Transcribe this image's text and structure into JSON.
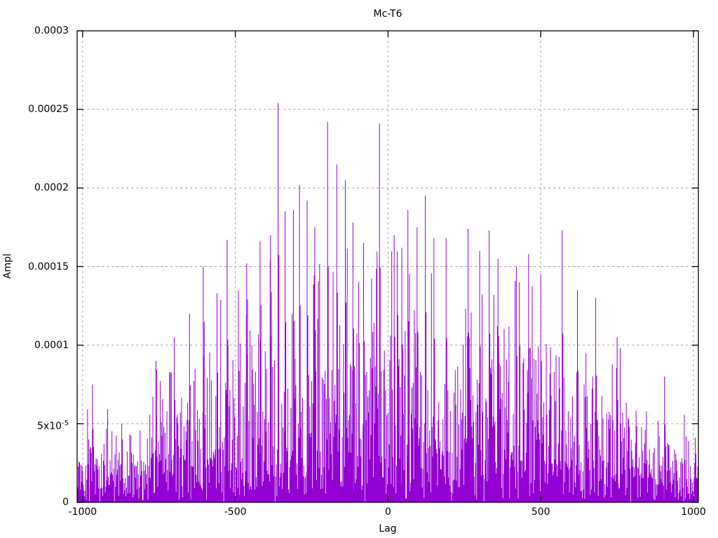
{
  "window": {
    "background_color": "#ffffff",
    "text_color": "#000000"
  },
  "chart_data": {
    "type": "line",
    "style": "impulses",
    "title": "Mc-T6",
    "xlabel": "Lag",
    "ylabel": "Ampl",
    "xlim": [
      -1018,
      1016
    ],
    "ylim": [
      0,
      0.0003
    ],
    "grid": true,
    "legend": "none",
    "line_color": "#9400d3",
    "grid_color": "#a6a6a6",
    "frame_color": "#000000",
    "x_ticks": [
      {
        "value": -1000,
        "label": "-1000"
      },
      {
        "value": -500,
        "label": "-500"
      },
      {
        "value": 0,
        "label": "0"
      },
      {
        "value": 500,
        "label": "500"
      },
      {
        "value": 1000,
        "label": "1000"
      }
    ],
    "y_ticks": [
      {
        "value": 0,
        "label": "0"
      },
      {
        "value": 5e-05,
        "label": "5x10^-5"
      },
      {
        "value": 0.0001,
        "label": "0.0001"
      },
      {
        "value": 0.00015,
        "label": "0.00015"
      },
      {
        "value": 0.0002,
        "label": "0.0002"
      },
      {
        "value": 0.00025,
        "label": "0.00025"
      },
      {
        "value": 0.0003,
        "label": "0.0003"
      }
    ],
    "noise_model": {
      "description": "dense half-normal amplitude noise vs lag; sigma = envelope/2.2, |z| clipped at 2.6",
      "seed": 1337,
      "lag_step": 2,
      "sigma_divisor": 2.2,
      "clip_z": 2.6,
      "envelope": [
        [
          -1020,
          5.2e-05
        ],
        [
          -960,
          5.6e-05
        ],
        [
          -900,
          5.6e-05
        ],
        [
          -800,
          6.5e-05
        ],
        [
          -700,
          8e-05
        ],
        [
          -620,
          9.5e-05
        ],
        [
          -550,
          0.000115
        ],
        [
          -480,
          0.00012
        ],
        [
          -400,
          0.00013
        ],
        [
          -300,
          0.000135
        ],
        [
          -200,
          0.00014
        ],
        [
          -100,
          0.000135
        ],
        [
          0,
          0.000135
        ],
        [
          100,
          0.000135
        ],
        [
          200,
          0.00013
        ],
        [
          300,
          0.000125
        ],
        [
          400,
          0.00012
        ],
        [
          500,
          0.000115
        ],
        [
          600,
          0.000105
        ],
        [
          700,
          9.5e-05
        ],
        [
          800,
          7.5e-05
        ],
        [
          900,
          6e-05
        ],
        [
          1020,
          5e-05
        ]
      ],
      "notable_peaks": [
        [
          -968,
          7.5e-05
        ],
        [
          -760,
          9e-05
        ],
        [
          -700,
          0.000105
        ],
        [
          -650,
          0.00012
        ],
        [
          -605,
          0.00015
        ],
        [
          -560,
          0.000133
        ],
        [
          -527,
          0.000167
        ],
        [
          -490,
          0.000135
        ],
        [
          -463,
          0.000152
        ],
        [
          -419,
          0.000166
        ],
        [
          -385,
          0.00017
        ],
        [
          -360,
          0.000254
        ],
        [
          -337,
          0.000185
        ],
        [
          -310,
          0.000186
        ],
        [
          -290,
          0.000202
        ],
        [
          -265,
          0.000192
        ],
        [
          -240,
          0.000175
        ],
        [
          -198,
          0.000242
        ],
        [
          -168,
          0.000215
        ],
        [
          -140,
          0.000205
        ],
        [
          -115,
          0.000178
        ],
        [
          -80,
          0.000165
        ],
        [
          -28,
          0.000241
        ],
        [
          20,
          0.00017
        ],
        [
          45,
          0.000162
        ],
        [
          65,
          0.000186
        ],
        [
          95,
          0.000175
        ],
        [
          122,
          0.000195
        ],
        [
          150,
          0.000168
        ],
        [
          190,
          0.000168
        ],
        [
          262,
          0.000174
        ],
        [
          300,
          0.00016
        ],
        [
          331,
          0.000173
        ],
        [
          360,
          0.000155
        ],
        [
          420,
          0.00015
        ],
        [
          460,
          0.000158
        ],
        [
          500,
          0.000145
        ],
        [
          570,
          0.000173
        ],
        [
          620,
          0.000135
        ],
        [
          680,
          0.00013
        ],
        [
          750,
          0.000105
        ],
        [
          905,
          8e-05
        ]
      ]
    }
  }
}
